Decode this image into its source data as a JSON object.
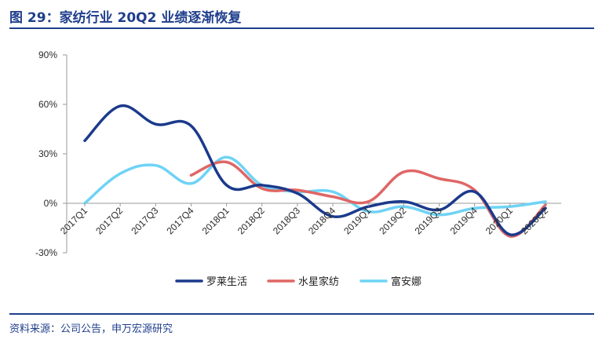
{
  "header": {
    "title": "图 29：家纺行业 20Q2 业绩逐渐恢复"
  },
  "footer": {
    "source": "资料来源：公司公告，申万宏源研究"
  },
  "chart_data": {
    "type": "line",
    "categories": [
      "2017Q1",
      "2017Q2",
      "2017Q3",
      "2017Q4",
      "2018Q1",
      "2018Q2",
      "2018Q3",
      "2018Q4",
      "2019Q1",
      "2019Q2",
      "2019Q3",
      "2019Q4",
      "2020Q1",
      "2020Q2"
    ],
    "y_ticks": [
      "90%",
      "60%",
      "30%",
      "0%",
      "-30%"
    ],
    "y_tick_values": [
      90,
      60,
      30,
      0,
      -30
    ],
    "ylim": [
      -30,
      90
    ],
    "grid": false,
    "legend_position": "bottom",
    "series": [
      {
        "name": "罗莱生活",
        "color": "#1b3a8c",
        "values": [
          38,
          59,
          48,
          47,
          11,
          11,
          6,
          -8,
          -2,
          1,
          -4,
          7,
          -19,
          -3
        ]
      },
      {
        "name": "水星家纺",
        "color": "#e06666",
        "values": [
          null,
          null,
          null,
          17,
          25,
          9,
          8,
          4,
          1,
          19,
          15,
          8,
          -20,
          -1
        ]
      },
      {
        "name": "富安娜",
        "color": "#6fd3f5",
        "values": [
          0,
          18,
          23,
          12,
          28,
          11,
          7,
          7,
          -5,
          -2,
          -7,
          -3,
          -2,
          1
        ]
      }
    ]
  }
}
